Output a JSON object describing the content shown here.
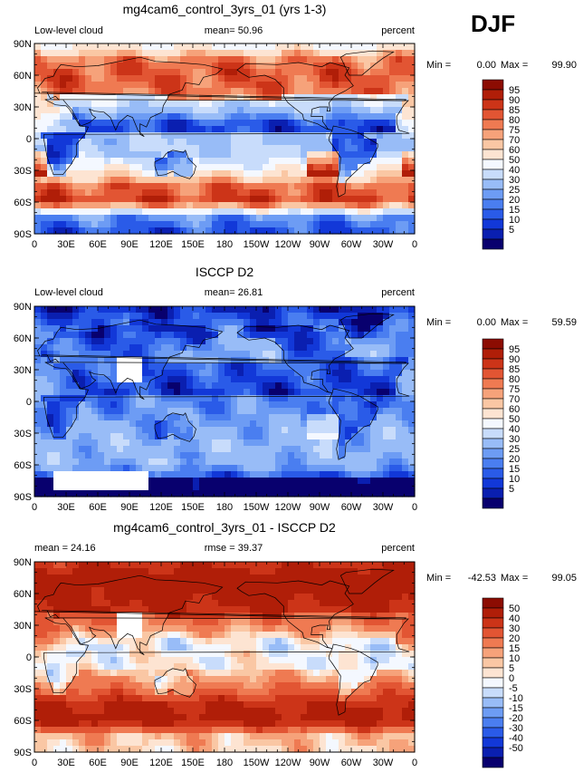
{
  "season": "DJF",
  "axes": {
    "y_ticks": [
      "90N",
      "60N",
      "30N",
      "0",
      "30S",
      "60S",
      "90S"
    ],
    "x_ticks": [
      "0",
      "30E",
      "60E",
      "90E",
      "120E",
      "150E",
      "180",
      "150W",
      "120W",
      "90W",
      "60W",
      "30W",
      "0"
    ]
  },
  "colors": {
    "abs_scale": [
      "#08006e",
      "#0a1fb0",
      "#1238d8",
      "#2a5be8",
      "#4a7ef0",
      "#6d9cf4",
      "#98bcf7",
      "#c8dcfb",
      "#f4f8ff",
      "#fde4d2",
      "#fac7a4",
      "#f6a27a",
      "#ef7a52",
      "#e25533",
      "#cc3418",
      "#b01e08",
      "#8c0c02"
    ],
    "diff_scale": [
      "#08006e",
      "#0a1fb0",
      "#1238d8",
      "#2a5be8",
      "#4a7ef0",
      "#6d9cf4",
      "#98bcf7",
      "#c8dcfb",
      "#f4f8ff",
      "#fde4d2",
      "#fac7a4",
      "#f6a27a",
      "#ef7a52",
      "#e25533",
      "#cc3418",
      "#b01e08",
      "#8c0c02"
    ],
    "missing": "#ffffff",
    "coast": "#000000"
  },
  "panels": [
    {
      "title": "mg4cam6_control_3yrs_01 (yrs 1-3)",
      "left_label": "Low-level cloud",
      "center_label": "mean=  50.96",
      "right_label": "percent",
      "min_label": "Min =",
      "min_value": "0.00",
      "max_label": "Max =",
      "max_value": "99.90",
      "colorbar_labels": [
        "95",
        "90",
        "85",
        "80",
        "75",
        "70",
        "60",
        "50",
        "40",
        "30",
        "25",
        "20",
        "15",
        "10",
        "5"
      ],
      "chart_data": {
        "type": "heatmap",
        "variable": "Low-level cloud",
        "units": "percent",
        "mean": 50.96,
        "min": 0.0,
        "max": 99.9,
        "xlim": [
          0,
          360
        ],
        "ylim": [
          -90,
          90
        ],
        "levels": [
          5,
          10,
          15,
          20,
          25,
          30,
          40,
          50,
          60,
          70,
          75,
          80,
          85,
          90,
          95
        ],
        "zonal_profile": {
          "lat": [
            90,
            75,
            60,
            45,
            30,
            15,
            0,
            -15,
            -30,
            -45,
            -60,
            -75,
            -90
          ],
          "value": [
            55,
            82,
            88,
            84,
            70,
            45,
            38,
            42,
            60,
            85,
            92,
            25,
            15
          ]
        }
      }
    },
    {
      "title": "ISCCP D2",
      "left_label": "Low-level cloud",
      "center_label": "mean=  26.81",
      "right_label": "percent",
      "min_label": "Min =",
      "min_value": "0.00",
      "max_label": "Max =",
      "max_value": "59.59",
      "colorbar_labels": [
        "95",
        "90",
        "85",
        "80",
        "75",
        "70",
        "60",
        "50",
        "40",
        "30",
        "25",
        "20",
        "15",
        "10",
        "5"
      ],
      "chart_data": {
        "type": "heatmap",
        "variable": "Low-level cloud",
        "units": "percent",
        "mean": 26.81,
        "min": 0.0,
        "max": 59.59,
        "xlim": [
          0,
          360
        ],
        "ylim": [
          -90,
          90
        ],
        "levels": [
          5,
          10,
          15,
          20,
          25,
          30,
          40,
          50,
          60,
          70,
          75,
          80,
          85,
          90,
          95
        ],
        "zonal_profile": {
          "lat": [
            90,
            75,
            60,
            45,
            30,
            15,
            0,
            -15,
            -30,
            -45,
            -60,
            -75,
            -90
          ],
          "value": [
            8,
            18,
            28,
            32,
            30,
            26,
            24,
            28,
            32,
            34,
            32,
            10,
            4
          ]
        }
      }
    },
    {
      "title": "mg4cam6_control_3yrs_01 - ISCCP D2",
      "left_label": "mean =  24.16",
      "center_label": "rmse =  39.37",
      "right_label": "percent",
      "min_label": "Min =",
      "min_value": "-42.53",
      "max_label": "Max =",
      "max_value": "99.05",
      "colorbar_labels": [
        "50",
        "40",
        "30",
        "20",
        "15",
        "10",
        "5",
        "0",
        "-5",
        "-10",
        "-15",
        "-20",
        "-30",
        "-40",
        "-50"
      ],
      "chart_data": {
        "type": "heatmap",
        "variable": "Low-level cloud difference",
        "units": "percent",
        "mean": 24.16,
        "rmse": 39.37,
        "min": -42.53,
        "max": 99.05,
        "xlim": [
          0,
          360
        ],
        "ylim": [
          -90,
          90
        ],
        "levels": [
          -50,
          -40,
          -30,
          -20,
          -15,
          -10,
          -5,
          0,
          5,
          10,
          15,
          20,
          30,
          40,
          50
        ],
        "zonal_profile": {
          "lat": [
            90,
            75,
            60,
            45,
            30,
            15,
            0,
            -15,
            -30,
            -45,
            -60,
            -75,
            -90
          ],
          "value": [
            45,
            62,
            58,
            50,
            38,
            18,
            12,
            14,
            28,
            50,
            58,
            14,
            10
          ]
        }
      }
    }
  ]
}
